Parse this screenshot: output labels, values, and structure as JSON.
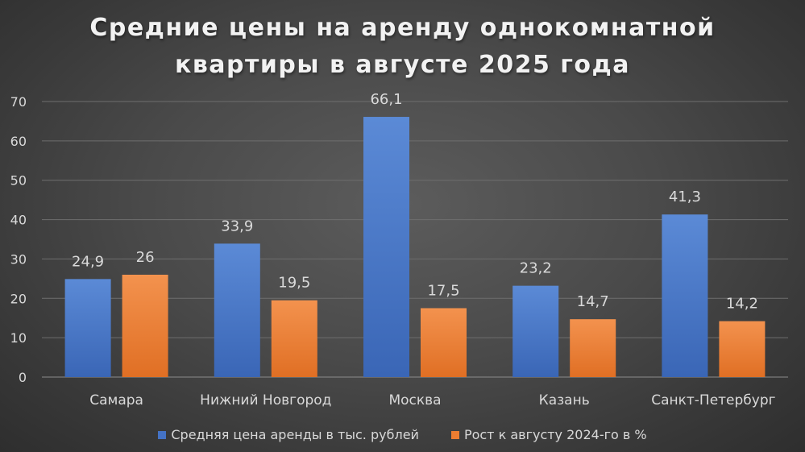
{
  "chart_data": {
    "type": "bar",
    "title_lines": [
      "Средние цены на аренду однокомнатной",
      "квартиры в августе 2025 года"
    ],
    "categories": [
      "Самара",
      "Нижний Новгород",
      "Москва",
      "Казань",
      "Санкт-Петербург"
    ],
    "series": [
      {
        "name": "Средняя цена аренды в тыс. рублей",
        "values": [
          24.9,
          33.9,
          66.1,
          23.2,
          41.3
        ],
        "labels": [
          "24,9",
          "33,9",
          "66,1",
          "23,2",
          "41,3"
        ],
        "color": "#4472c4"
      },
      {
        "name": "Рост к августу 2024-го в %",
        "values": [
          26,
          19.5,
          17.5,
          14.7,
          14.2
        ],
        "labels": [
          "26",
          "19,5",
          "17,5",
          "14,7",
          "14,2"
        ],
        "color": "#ed7d31"
      }
    ],
    "y_ticks": [
      "0",
      "10",
      "20",
      "30",
      "40",
      "50",
      "60",
      "70"
    ],
    "ylim": [
      0,
      70
    ],
    "grid": true,
    "legend_position": "bottom"
  }
}
